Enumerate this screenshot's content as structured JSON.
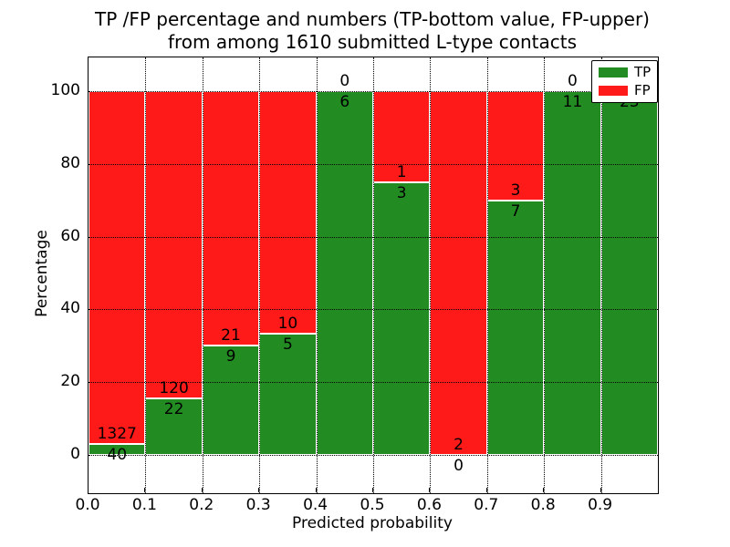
{
  "figure": {
    "title_line1": "TP /FP percentage and numbers (TP-bottom value, FP-upper)",
    "title_line2": "from among 1610 submitted L-type contacts",
    "xlabel": "Predicted probability",
    "ylabel": "Percentage"
  },
  "legend": {
    "entries": [
      {
        "label": "TP",
        "color": "#228B22"
      },
      {
        "label": "FP",
        "color": "#FF1A1A"
      }
    ]
  },
  "chart_data": {
    "type": "bar",
    "stacked": true,
    "title": "TP /FP percentage and numbers (TP-bottom value, FP-upper) from among 1610 submitted L-type contacts",
    "xlabel": "Predicted probability",
    "ylabel": "Percentage",
    "total_contacts": 1610,
    "bin_width": 0.1,
    "bin_starts": [
      0.0,
      0.1,
      0.2,
      0.3,
      0.4,
      0.5,
      0.6,
      0.7,
      0.8,
      0.9
    ],
    "x_tick_labels": [
      "0.0",
      "0.1",
      "0.2",
      "0.3",
      "0.4",
      "0.5",
      "0.6",
      "0.7",
      "0.8",
      "0.9"
    ],
    "y_tick_values": [
      0,
      20,
      40,
      60,
      80,
      100
    ],
    "y_tick_labels": [
      "0",
      "20",
      "40",
      "60",
      "80",
      "100"
    ],
    "xlim": [
      0.0,
      1.0
    ],
    "ylim": [
      -10.5,
      109.3
    ],
    "grid": true,
    "legend_position": "upper right",
    "bar_edge_color": "#ffffff",
    "series": [
      {
        "name": "TP",
        "color": "#228B22",
        "counts": [
          40,
          22,
          9,
          5,
          6,
          3,
          0,
          7,
          11,
          23
        ]
      },
      {
        "name": "FP",
        "color": "#FF1A1A",
        "counts": [
          1327,
          120,
          21,
          10,
          0,
          1,
          2,
          3,
          0,
          0
        ]
      }
    ],
    "tp_percentages": [
      2.9,
      15.5,
      30.0,
      33.3,
      100.0,
      75.0,
      0.0,
      70.0,
      100.0,
      100.0
    ]
  }
}
